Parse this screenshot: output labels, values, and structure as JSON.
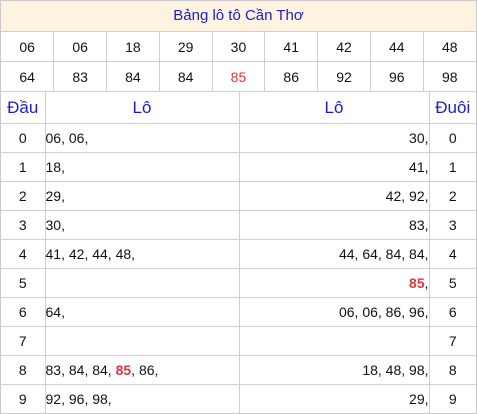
{
  "title": "Bảng lô tô Cần Thơ",
  "numbers_row1": [
    "06",
    "06",
    "18",
    "29",
    "30",
    "41",
    "42",
    "44",
    "48"
  ],
  "numbers_row2": [
    "64",
    "83",
    "84",
    "84",
    "85",
    "86",
    "92",
    "96",
    "98"
  ],
  "highlight_number": "85",
  "colors": {
    "title": "#1c1cc8",
    "digit": "#e0343a",
    "highlight": "#e0343a",
    "title_bg": "#fdf3e0"
  },
  "headers": {
    "dau": "Đầu",
    "lo_left": "Lô",
    "lo_right": "Lô",
    "duoi": "Đuôi"
  },
  "rows": [
    {
      "dau": "0",
      "left": [
        "06",
        "06"
      ],
      "right": [
        "30"
      ],
      "duoi": "0"
    },
    {
      "dau": "1",
      "left": [
        "18"
      ],
      "right": [
        "41"
      ],
      "duoi": "1"
    },
    {
      "dau": "2",
      "left": [
        "29"
      ],
      "right": [
        "42",
        "92"
      ],
      "duoi": "2"
    },
    {
      "dau": "3",
      "left": [
        "30"
      ],
      "right": [
        "83"
      ],
      "duoi": "3"
    },
    {
      "dau": "4",
      "left": [
        "41",
        "42",
        "44",
        "48"
      ],
      "right": [
        "44",
        "64",
        "84",
        "84"
      ],
      "duoi": "4"
    },
    {
      "dau": "5",
      "left": [],
      "right": [
        "85"
      ],
      "duoi": "5"
    },
    {
      "dau": "6",
      "left": [
        "64"
      ],
      "right": [
        "06",
        "06",
        "86",
        "96"
      ],
      "duoi": "6"
    },
    {
      "dau": "7",
      "left": [],
      "right": [],
      "duoi": "7"
    },
    {
      "dau": "8",
      "left": [
        "83",
        "84",
        "84",
        "85",
        "86"
      ],
      "right": [
        "18",
        "48",
        "98"
      ],
      "duoi": "8"
    },
    {
      "dau": "9",
      "left": [
        "92",
        "96",
        "98"
      ],
      "right": [
        "29"
      ],
      "duoi": "9"
    }
  ]
}
